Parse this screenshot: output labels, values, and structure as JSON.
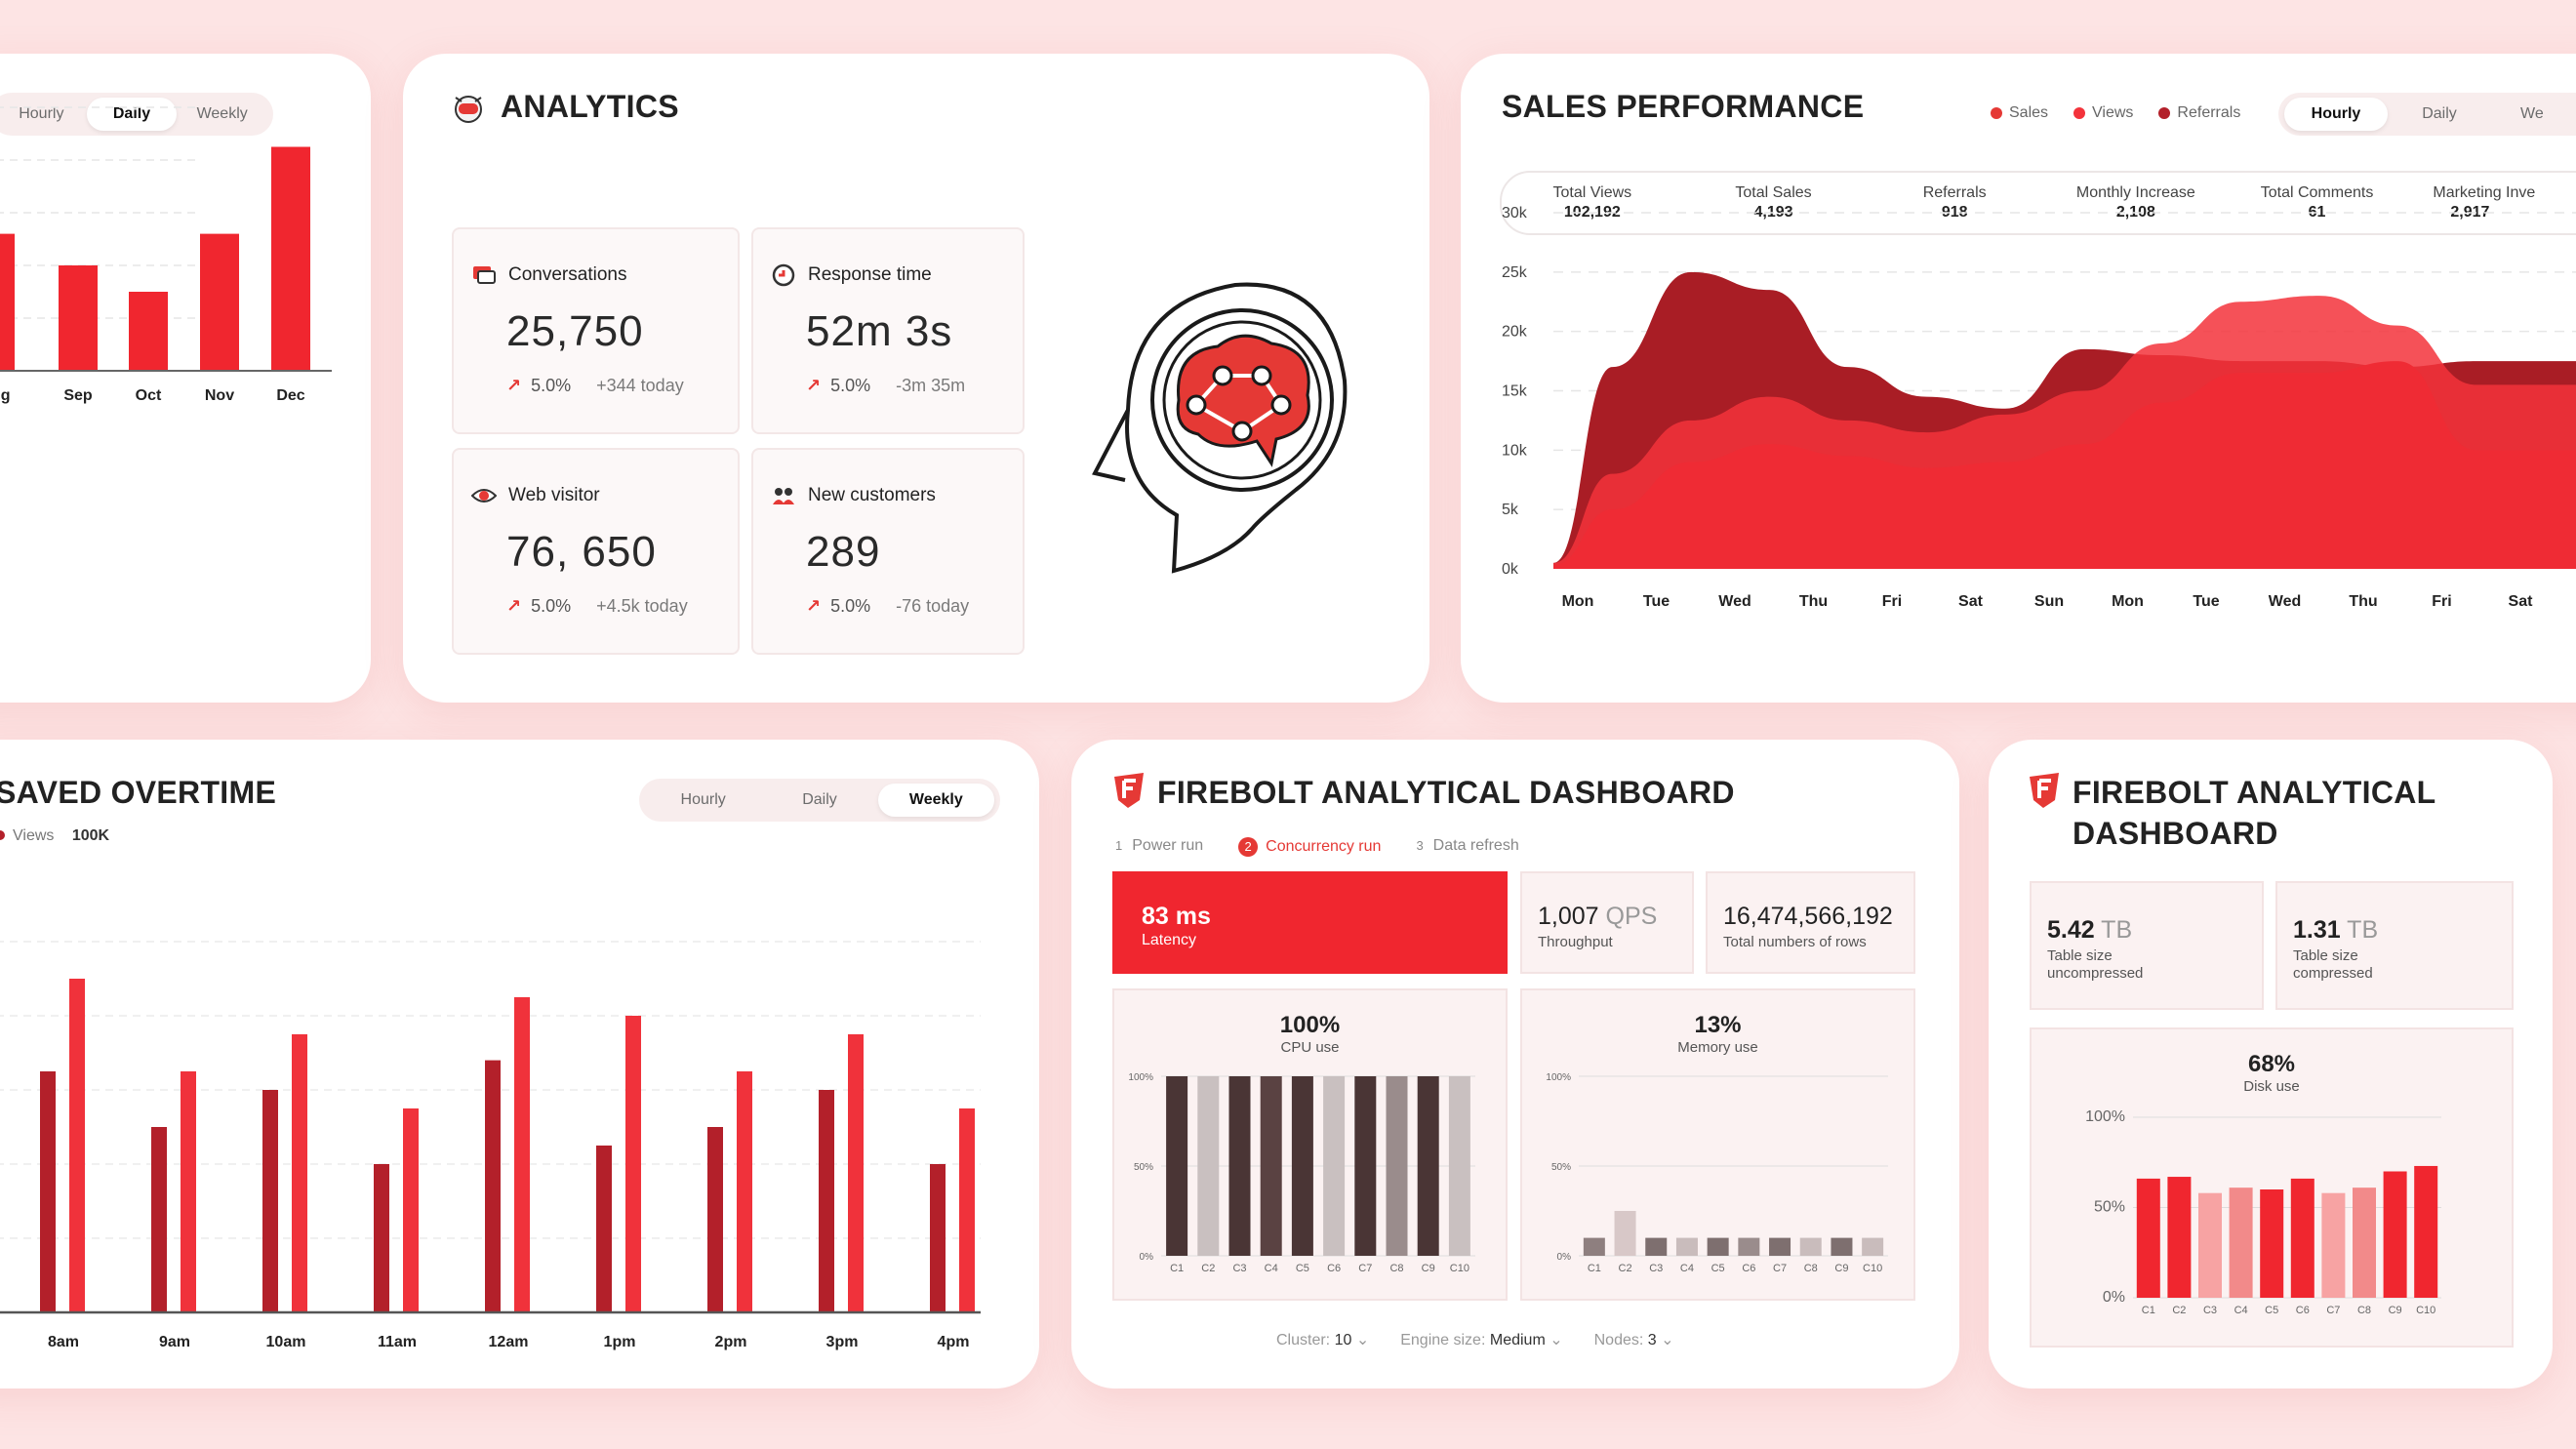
{
  "card_monthly": {
    "tabs": [
      "Hourly",
      "Daily",
      "Weekly"
    ],
    "active_tab": "Daily",
    "chart_data": {
      "type": "bar",
      "categories": [
        "Aug",
        "Sep",
        "Oct",
        "Nov",
        "Dec"
      ],
      "values": [
        52,
        40,
        30,
        52,
        85
      ],
      "ylim": [
        0,
        100
      ]
    }
  },
  "analytics": {
    "title": "ANALYTICS",
    "stats": [
      {
        "label": "Conversations",
        "value": "25,750",
        "pct": "5.0%",
        "today": "+344 today"
      },
      {
        "label": "Response time",
        "value": "52m 3s",
        "pct": "5.0%",
        "today": "-3m 35m"
      },
      {
        "label": "Web visitor",
        "value": "76, 650",
        "pct": "5.0%",
        "today": "+4.5k today"
      },
      {
        "label": "New customers",
        "value": "289",
        "pct": "5.0%",
        "today": "-76 today"
      }
    ]
  },
  "sales": {
    "title": "SALES PERFORMANCE",
    "legend": [
      "Sales",
      "Views",
      "Referrals"
    ],
    "tabs": [
      "Hourly",
      "Daily",
      "We"
    ],
    "kpis": [
      {
        "label": "Total Views",
        "value": "102,192"
      },
      {
        "label": "Total Sales",
        "value": "4,193"
      },
      {
        "label": "Referrals",
        "value": "918"
      },
      {
        "label": "Monthly Increase",
        "value": "2,108"
      },
      {
        "label": "Total Comments",
        "value": "61"
      },
      {
        "label": "Marketing Inve",
        "value": "2,917"
      }
    ],
    "chart_data": {
      "type": "area",
      "title": "",
      "x": [
        "Mon",
        "Tue",
        "Wed",
        "Thu",
        "Fri",
        "Sat",
        "Sun",
        "Mon",
        "Tue",
        "Wed",
        "Thu",
        "Fri",
        "Sat"
      ],
      "y_ticks": [
        "0k",
        "5k",
        "10k",
        "15k",
        "20k",
        "25k",
        "30k"
      ],
      "ylim": [
        0,
        30000
      ],
      "series": [
        {
          "name": "Referrals",
          "color": "#a91d25",
          "values": [
            500,
            17000,
            25000,
            23500,
            17000,
            14500,
            13500,
            18500,
            18000,
            17500,
            17500,
            17000,
            17500
          ]
        },
        {
          "name": "Views",
          "color": "#f3333b",
          "values": [
            500,
            8000,
            12500,
            14500,
            12500,
            11500,
            13000,
            15000,
            19000,
            22500,
            23000,
            20500,
            15500
          ]
        },
        {
          "name": "Sales",
          "color": "#ef2b34",
          "values": [
            300,
            5000,
            9000,
            10500,
            9500,
            8500,
            9000,
            10500,
            14000,
            16500,
            16500,
            17500,
            10000
          ]
        }
      ]
    }
  },
  "saved": {
    "title": "SAVED OVERTIME",
    "legend_label": "Views",
    "legend_value": "100K",
    "tabs": [
      "Hourly",
      "Daily",
      "Weekly"
    ],
    "active_tab": "Weekly",
    "chart_data": {
      "type": "bar",
      "categories": [
        "8am",
        "9am",
        "10am",
        "11am",
        "12am",
        "1pm",
        "2pm",
        "3pm",
        "4pm"
      ],
      "ylim": [
        0,
        100
      ],
      "series": [
        {
          "name": "Views A",
          "color": "#b3202a",
          "values": [
            65,
            50,
            60,
            40,
            68,
            45,
            50,
            60,
            40
          ]
        },
        {
          "name": "Views B",
          "color": "#f0323b",
          "values": [
            90,
            65,
            75,
            55,
            85,
            80,
            65,
            75,
            55
          ]
        }
      ]
    }
  },
  "firebolt1": {
    "title": "FIREBOLT ANALYTICAL DASHBOARD",
    "steps": [
      {
        "num": "1",
        "label": "Power run"
      },
      {
        "num": "2",
        "label": "Concurrency run"
      },
      {
        "num": "3",
        "label": "Data refresh"
      }
    ],
    "latency_value": "83 ms",
    "latency_label": "Latency",
    "throughput_value": "1,007",
    "throughput_unit": "QPS",
    "throughput_label": "Throughput",
    "rows_value": "16,474,566,192",
    "rows_label": "Total numbers of rows",
    "cpu_value": "100%",
    "cpu_label": "CPU use",
    "mem_value": "13%",
    "mem_label": "Memory use",
    "y_ticks": [
      "100%",
      "50%",
      "0%"
    ],
    "cpu_chart": {
      "type": "bar",
      "categories": [
        "C1",
        "C2",
        "C3",
        "C4",
        "C5",
        "C6",
        "C7",
        "C8",
        "C9",
        "C10"
      ],
      "values": [
        100,
        100,
        100,
        100,
        100,
        100,
        100,
        100,
        100,
        100
      ],
      "ylim": [
        0,
        100
      ]
    },
    "mem_chart": {
      "type": "bar",
      "categories": [
        "C1",
        "C2",
        "C3",
        "C4",
        "C5",
        "C6",
        "C7",
        "C8",
        "C9",
        "C10"
      ],
      "values": [
        10,
        25,
        10,
        10,
        10,
        10,
        10,
        10,
        10,
        10
      ],
      "ylim": [
        0,
        100
      ]
    },
    "footer": [
      {
        "label": "Cluster:",
        "value": "10"
      },
      {
        "label": "Engine size:",
        "value": "Medium"
      },
      {
        "label": "Nodes:",
        "value": "3"
      }
    ]
  },
  "firebolt2": {
    "title_line1": "FIREBOLT ANALYTICAL",
    "title_line2": "DASHBOARD",
    "uncompressed_value": "5.42",
    "uncompressed_unit": "TB",
    "uncompressed_label1": "Table size",
    "uncompressed_label2": "uncompressed",
    "compressed_value": "1.31",
    "compressed_unit": "TB",
    "compressed_label1": "Table size",
    "compressed_label2": "compressed",
    "disk_value": "68%",
    "disk_label": "Disk use",
    "y_ticks": [
      "100%",
      "50%",
      "0%"
    ],
    "disk_chart": {
      "type": "bar",
      "categories": [
        "C1",
        "C2",
        "C3",
        "C4",
        "C5",
        "C6",
        "C7",
        "C8",
        "C9",
        "C10"
      ],
      "values": [
        66,
        67,
        58,
        61,
        60,
        66,
        58,
        61,
        70,
        73
      ],
      "ylim": [
        0,
        100
      ]
    }
  },
  "colors": {
    "accent": "#f0262f",
    "dark_red": "#a91d25",
    "bg": "#fde4e4"
  }
}
